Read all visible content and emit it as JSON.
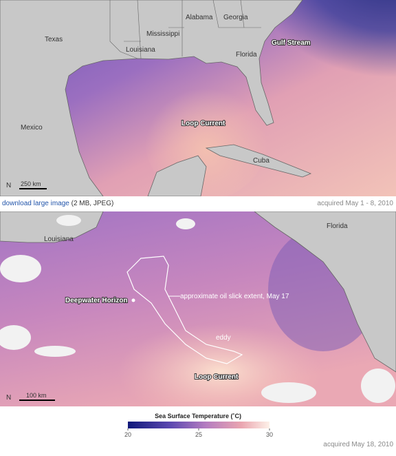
{
  "map1": {
    "labels": {
      "texas": "Texas",
      "alabama": "Alabama",
      "georgia": "Georgia",
      "mississippi": "Mississippi",
      "louisiana": "Louisiana",
      "florida": "Florida",
      "gulf_stream": "Gulf Stream",
      "mexico": "Mexico",
      "loop_current": "Loop Current",
      "cuba": "Cuba"
    },
    "north": "N",
    "scale": "250 km"
  },
  "caption1": {
    "link": "download large image",
    "note": "(2 MB, JPEG)",
    "date": "acquired May 1 - 8, 2010"
  },
  "map2": {
    "labels": {
      "louisiana": "Louisiana",
      "florida": "Florida",
      "deepwater": "Deepwater Horizon",
      "slick": "approximate oil slick extent, May 17",
      "eddy": "eddy",
      "loop_current": "Loop Current"
    },
    "north": "N",
    "scale": "100 km"
  },
  "legend": {
    "title": "Sea Surface Temperature (˚C)",
    "range": [
      20,
      30
    ],
    "ticks": [
      20,
      25,
      30
    ]
  },
  "caption2": {
    "date": "acquired May 18, 2010"
  }
}
